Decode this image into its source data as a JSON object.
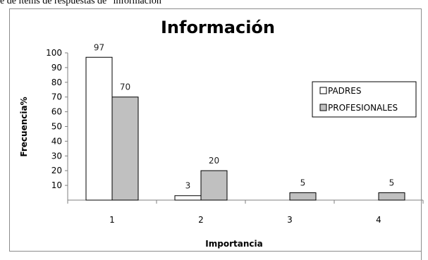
{
  "page": {
    "caption": "e de ítems de respuestas de \"información\""
  },
  "chart_data": {
    "type": "bar",
    "title": "Información",
    "xlabel": "Importancia",
    "ylabel": "Frecuencia%",
    "categories": [
      "1",
      "2",
      "3",
      "4"
    ],
    "ylim": [
      0,
      100
    ],
    "yticks": [
      10,
      20,
      30,
      40,
      50,
      60,
      70,
      80,
      90,
      100
    ],
    "grid": false,
    "legend_position": "right",
    "series": [
      {
        "name": "PADRES",
        "values": [
          97,
          3,
          null,
          null
        ],
        "color": "#ffffff"
      },
      {
        "name": "PROFESIONALES",
        "values": [
          70,
          20,
          5,
          5
        ],
        "color": "#c0c0c0"
      }
    ]
  }
}
